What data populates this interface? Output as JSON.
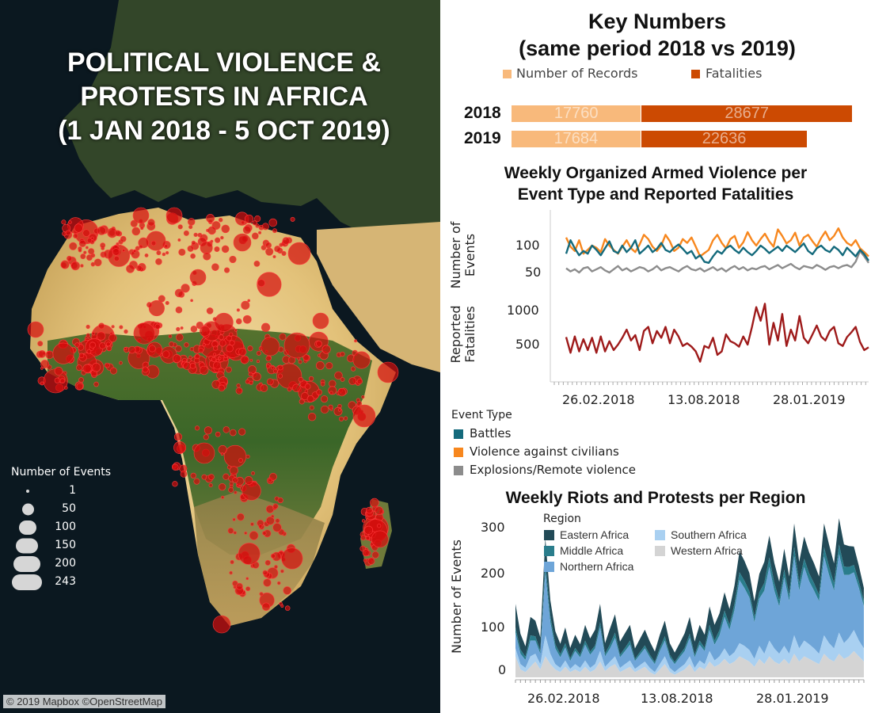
{
  "map": {
    "title": "POLITICAL VIOLENCE &\nPROTESTS IN AFRICA\n(1 JAN 2018 - 5 OCT 2019)",
    "size_legend_title": "Number of Events",
    "size_legend": [
      "1",
      "50",
      "100",
      "150",
      "200",
      "243"
    ],
    "attribution": "© 2019 Mapbox ©OpenStreetMap",
    "colors": {
      "ocean": "#0b1820",
      "desert": "#e9cf8e",
      "vegetation": "#3f6a2a",
      "dots": "#d40d0d"
    }
  },
  "key_numbers": {
    "title": "Key Numbers\n(same period 2018 vs 2019)",
    "legend": [
      {
        "label": "Number of Records",
        "color": "#f8b97b"
      },
      {
        "label": "Fatalities",
        "color": "#cc4a02"
      }
    ]
  },
  "armed": {
    "title": "Weekly Organized Armed Violence per\nEvent Type and Reported Fatalities",
    "events_axis_label": "Number of\nEvents",
    "fatalities_axis_label": "Reported\nFatalities",
    "events_ticks": [
      "100",
      "50"
    ],
    "fatalities_ticks": [
      "1000",
      "500"
    ],
    "x_ticks": [
      "26.02.2018",
      "13.08.2018",
      "28.01.2019"
    ],
    "legend_title": "Event Type",
    "legend": [
      {
        "label": "Battles",
        "color": "#146a7c"
      },
      {
        "label": "Violence against civilians",
        "color": "#f7871e"
      },
      {
        "label": "Explosions/Remote violence",
        "color": "#8c8c8c"
      }
    ],
    "fatality_color": "#9e1a1a"
  },
  "riots": {
    "title": "Weekly Riots and Protests per Region",
    "y_axis_label": "Number of Events",
    "y_ticks": [
      "300",
      "200",
      "100",
      "0"
    ],
    "x_ticks": [
      "26.02.2018",
      "13.08.2018",
      "28.01.2019"
    ],
    "legend_title": "Region",
    "legend": [
      {
        "label": "Eastern Africa",
        "color": "#224a57"
      },
      {
        "label": "Southern Africa",
        "color": "#a9d0f1"
      },
      {
        "label": "Middle Africa",
        "color": "#2a7d8c"
      },
      {
        "label": "Western Africa",
        "color": "#d4d4d4"
      },
      {
        "label": "Northern Africa",
        "color": "#6ea5d8"
      }
    ]
  },
  "chart_data": [
    {
      "type": "bar",
      "title": "Key Numbers (same period 2018 vs 2019)",
      "categories": [
        "2018",
        "2019"
      ],
      "series": [
        {
          "name": "Number of Records",
          "values": [
            17760,
            17684
          ]
        },
        {
          "name": "Fatalities",
          "values": [
            28677,
            22636
          ]
        }
      ],
      "stacked": true
    },
    {
      "type": "line",
      "title": "Weekly Organized Armed Violence per Event Type and Reported Fatalities",
      "x_start": "2018-01-01",
      "x_interval": "week",
      "ylabel_events": "Number of Events",
      "ylabel_fatalities": "Reported Fatalities",
      "ylim_events": [
        30,
        150
      ],
      "ylim_fatalities": [
        100,
        1100
      ],
      "series": [
        {
          "name": "Battles",
          "panel": "events",
          "values": [
            85,
            110,
            95,
            82,
            90,
            85,
            100,
            92,
            82,
            95,
            108,
            90,
            86,
            100,
            88,
            96,
            110,
            85,
            92,
            100,
            88,
            94,
            105,
            92,
            88,
            96,
            102,
            94,
            85,
            90,
            76,
            82,
            70,
            68,
            80,
            90,
            85,
            95,
            100,
            92,
            86,
            96,
            88,
            82,
            90,
            100,
            94,
            86,
            92,
            98,
            90,
            100,
            94,
            88,
            96,
            104,
            90,
            84,
            95,
            100,
            92,
            88,
            98,
            92,
            82,
            96,
            88,
            80,
            92,
            84,
            72
          ]
        },
        {
          "name": "Violence against civilians",
          "panel": "events",
          "values": [
            115,
            98,
            90,
            110,
            85,
            92,
            100,
            96,
            88,
            112,
            100,
            92,
            85,
            98,
            110,
            95,
            88,
            102,
            120,
            112,
            98,
            90,
            100,
            120,
            108,
            90,
            96,
            112,
            105,
            115,
            98,
            80,
            86,
            92,
            110,
            120,
            105,
            95,
            112,
            118,
            96,
            106,
            125,
            110,
            100,
            112,
            122,
            108,
            98,
            130,
            118,
            104,
            110,
            124,
            100,
            115,
            120,
            108,
            98,
            114,
            126,
            110,
            118,
            132,
            115,
            105,
            100,
            110,
            95,
            88,
            80
          ]
        },
        {
          "name": "Explosions/Remote violence",
          "panel": "events",
          "values": [
            58,
            52,
            56,
            50,
            58,
            60,
            52,
            56,
            60,
            54,
            50,
            56,
            62,
            54,
            58,
            52,
            56,
            60,
            58,
            52,
            56,
            62,
            54,
            58,
            60,
            56,
            52,
            58,
            62,
            56,
            54,
            58,
            52,
            56,
            60,
            54,
            58,
            52,
            58,
            62,
            56,
            60,
            54,
            58,
            56,
            60,
            62,
            56,
            60,
            64,
            58,
            62,
            66,
            60,
            56,
            62,
            60,
            58,
            64,
            60,
            55,
            60,
            62,
            58,
            62,
            64,
            60,
            70,
            90,
            80,
            68
          ]
        },
        {
          "name": "Reported Fatalities",
          "panel": "fatalities",
          "values": [
            610,
            380,
            620,
            400,
            580,
            420,
            600,
            380,
            620,
            400,
            550,
            420,
            500,
            600,
            720,
            560,
            640,
            420,
            700,
            760,
            520,
            700,
            600,
            760,
            520,
            720,
            620,
            480,
            520,
            470,
            400,
            250,
            480,
            450,
            600,
            350,
            400,
            650,
            550,
            520,
            470,
            620,
            500,
            760,
            1050,
            850,
            1100,
            500,
            820,
            560,
            950,
            480,
            720,
            560,
            920,
            600,
            520,
            650,
            780,
            620,
            560,
            700,
            760,
            520,
            480,
            610,
            680,
            760,
            540,
            420,
            460
          ]
        }
      ]
    },
    {
      "type": "area",
      "stacked": true,
      "title": "Weekly Riots and Protests per Region",
      "ylabel": "Number of Events",
      "ylim": [
        0,
        320
      ],
      "x_start": "2018-01-01",
      "x_interval": "week",
      "series": [
        {
          "name": "Western Africa",
          "values": [
            40,
            15,
            10,
            20,
            30,
            15,
            40,
            25,
            15,
            10,
            20,
            10,
            15,
            10,
            20,
            10,
            15,
            30,
            12,
            20,
            25,
            10,
            15,
            20,
            10,
            15,
            20,
            10,
            5,
            15,
            25,
            10,
            5,
            10,
            15,
            25,
            10,
            20,
            15,
            30,
            20,
            25,
            35,
            25,
            30,
            40,
            35,
            30,
            20,
            35,
            25,
            40,
            30,
            25,
            35,
            25,
            45,
            30,
            40,
            35,
            30,
            25,
            45,
            35,
            30,
            45,
            35,
            40,
            50,
            40,
            30
          ]
        },
        {
          "name": "Southern Africa",
          "values": [
            15,
            10,
            8,
            20,
            15,
            10,
            40,
            20,
            10,
            8,
            12,
            6,
            10,
            8,
            12,
            8,
            10,
            20,
            8,
            10,
            15,
            8,
            10,
            12,
            6,
            8,
            10,
            8,
            5,
            10,
            15,
            8,
            5,
            8,
            10,
            15,
            8,
            12,
            10,
            20,
            12,
            15,
            20,
            15,
            18,
            25,
            25,
            22,
            15,
            25,
            20,
            30,
            25,
            20,
            25,
            20,
            35,
            25,
            30,
            28,
            25,
            20,
            35,
            30,
            25,
            40,
            30,
            35,
            40,
            30,
            25
          ]
        },
        {
          "name": "Northern Africa",
          "values": [
            30,
            20,
            15,
            30,
            25,
            20,
            120,
            60,
            30,
            20,
            25,
            15,
            25,
            20,
            30,
            25,
            30,
            45,
            20,
            25,
            35,
            20,
            25,
            30,
            15,
            20,
            25,
            20,
            15,
            25,
            30,
            20,
            15,
            20,
            25,
            35,
            20,
            30,
            25,
            40,
            30,
            40,
            60,
            50,
            80,
            120,
            110,
            100,
            70,
            90,
            120,
            140,
            110,
            90,
            130,
            100,
            150,
            110,
            140,
            120,
            110,
            100,
            150,
            130,
            110,
            150,
            130,
            120,
            110,
            100,
            80
          ]
        },
        {
          "name": "Middle Africa",
          "values": [
            10,
            8,
            6,
            10,
            8,
            6,
            20,
            12,
            8,
            6,
            8,
            5,
            6,
            5,
            8,
            6,
            6,
            10,
            5,
            8,
            10,
            5,
            6,
            8,
            4,
            5,
            6,
            5,
            4,
            6,
            8,
            5,
            4,
            5,
            6,
            8,
            5,
            8,
            6,
            10,
            8,
            10,
            12,
            10,
            12,
            15,
            14,
            12,
            10,
            12,
            15,
            18,
            15,
            12,
            15,
            12,
            18,
            15,
            16,
            15,
            14,
            12,
            18,
            16,
            14,
            18,
            16,
            15,
            14,
            12,
            10
          ]
        },
        {
          "name": "Eastern Africa",
          "values": [
            45,
            30,
            20,
            35,
            30,
            25,
            45,
            30,
            25,
            20,
            30,
            20,
            25,
            20,
            30,
            25,
            30,
            35,
            20,
            30,
            35,
            25,
            28,
            30,
            20,
            25,
            30,
            25,
            20,
            25,
            30,
            22,
            18,
            22,
            28,
            32,
            25,
            30,
            25,
            35,
            30,
            32,
            35,
            30,
            35,
            40,
            38,
            35,
            30,
            35,
            40,
            42,
            38,
            35,
            40,
            35,
            45,
            40,
            42,
            40,
            38,
            35,
            45,
            42,
            38,
            50,
            42,
            40,
            35,
            30,
            25
          ]
        }
      ]
    }
  ]
}
